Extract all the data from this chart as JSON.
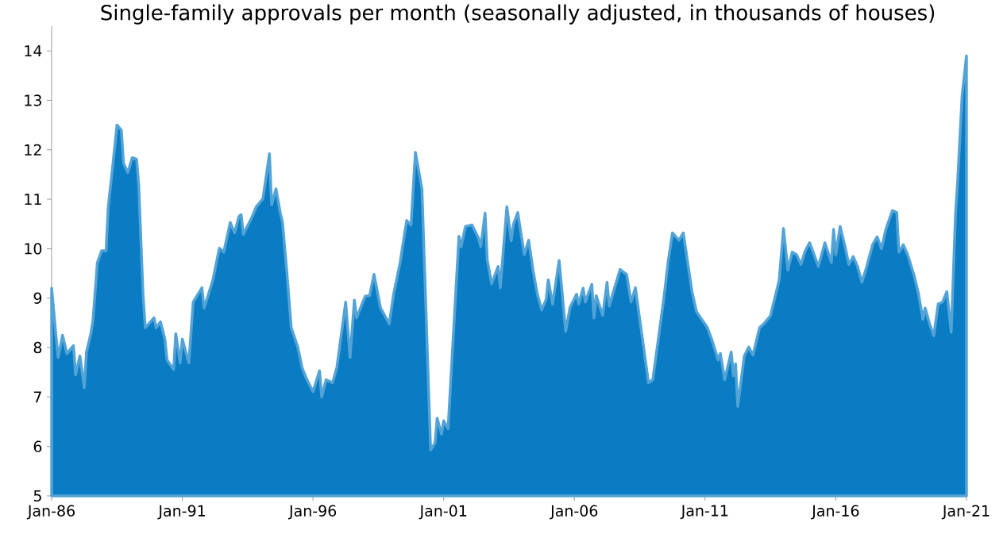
{
  "chart_data": {
    "type": "area",
    "title": "Single-family approvals per month (seasonally adjusted, in thousands of houses)",
    "x": [
      "1986-01",
      "1986-03",
      "1986-04",
      "1986-06",
      "1986-08",
      "1986-11",
      "1986-12",
      "1987-02",
      "1987-04",
      "1987-05",
      "1987-07",
      "1987-08",
      "1987-10",
      "1987-12",
      "1988-02",
      "1988-03",
      "1988-05",
      "1988-07",
      "1988-09",
      "1988-10",
      "1988-12",
      "1989-02",
      "1989-04",
      "1989-05",
      "1989-07",
      "1989-08",
      "1989-12",
      "1990-01",
      "1990-03",
      "1990-05",
      "1990-06",
      "1990-09",
      "1990-10",
      "1990-12",
      "1991-01",
      "1991-04",
      "1991-06",
      "1991-10",
      "1991-11",
      "1992-03",
      "1992-06",
      "1992-08",
      "1992-11",
      "1993-01",
      "1993-03",
      "1993-04",
      "1993-05",
      "1993-09",
      "1993-11",
      "1994-02",
      "1994-05",
      "1994-06",
      "1994-08",
      "1994-10",
      "1994-11",
      "1995-01",
      "1995-03",
      "1995-06",
      "1995-08",
      "1995-10",
      "1996-01",
      "1996-04",
      "1996-05",
      "1996-07",
      "1996-10",
      "1996-12",
      "1997-04",
      "1997-06",
      "1997-08",
      "1997-09",
      "1998-01",
      "1998-03",
      "1998-05",
      "1998-08",
      "1998-12",
      "1999-02",
      "1999-05",
      "1999-08",
      "1999-10",
      "1999-12",
      "2000-03",
      "2000-04",
      "2000-07",
      "2000-09",
      "2000-10",
      "2000-12",
      "2001-01",
      "2001-03",
      "2001-08",
      "2001-09",
      "2001-11",
      "2002-02",
      "2002-05",
      "2002-06",
      "2002-08",
      "2002-09",
      "2002-11",
      "2003-02",
      "2003-03",
      "2003-06",
      "2003-08",
      "2003-09",
      "2003-11",
      "2004-02",
      "2004-04",
      "2004-06",
      "2004-08",
      "2004-10",
      "2004-12",
      "2005-01",
      "2005-03",
      "2005-06",
      "2005-09",
      "2005-11",
      "2006-02",
      "2006-03",
      "2006-05",
      "2006-06",
      "2006-09",
      "2006-10",
      "2006-11",
      "2007-02",
      "2007-04",
      "2007-05",
      "2007-08",
      "2007-10",
      "2008-01",
      "2008-03",
      "2008-05",
      "2008-11",
      "2009-01",
      "2009-06",
      "2009-08",
      "2009-10",
      "2010-01",
      "2010-03",
      "2010-07",
      "2010-09",
      "2010-11",
      "2011-02",
      "2011-04",
      "2011-07",
      "2011-08",
      "2011-10",
      "2012-01",
      "2012-02",
      "2012-03",
      "2012-04",
      "2012-07",
      "2012-09",
      "2012-11",
      "2013-02",
      "2013-04",
      "2013-07",
      "2013-11",
      "2014-01",
      "2014-03",
      "2014-05",
      "2014-07",
      "2014-09",
      "2014-11",
      "2015-01",
      "2015-05",
      "2015-08",
      "2015-11",
      "2015-12",
      "2016-01",
      "2016-03",
      "2016-05",
      "2016-07",
      "2016-09",
      "2016-11",
      "2017-01",
      "2017-03",
      "2017-06",
      "2017-08",
      "2017-10",
      "2017-12",
      "2018-03",
      "2018-05",
      "2018-06",
      "2018-08",
      "2018-10",
      "2019-01",
      "2019-03",
      "2019-05",
      "2019-06",
      "2019-08",
      "2019-10",
      "2019-12",
      "2020-02",
      "2020-04",
      "2020-06",
      "2020-08",
      "2020-09",
      "2020-11",
      "2021-01"
    ],
    "series": [
      {
        "color": "#0a7cc4",
        "values": [
          9.2,
          8.24,
          7.8,
          8.25,
          7.88,
          8.04,
          7.45,
          7.83,
          7.19,
          7.91,
          8.28,
          8.56,
          9.72,
          9.96,
          9.96,
          10.85,
          11.65,
          12.5,
          12.4,
          11.73,
          11.54,
          11.84,
          11.81,
          11.28,
          9.04,
          8.4,
          8.6,
          8.4,
          8.52,
          8.17,
          7.75,
          7.56,
          8.28,
          7.69,
          8.17,
          7.69,
          8.92,
          9.21,
          8.8,
          9.36,
          10.01,
          9.93,
          10.53,
          10.32,
          10.65,
          10.69,
          10.29,
          10.64,
          10.85,
          11.01,
          11.92,
          10.89,
          11.21,
          10.72,
          10.53,
          9.52,
          8.4,
          8.01,
          7.59,
          7.37,
          7.11,
          7.53,
          7.0,
          7.35,
          7.29,
          7.61,
          8.92,
          7.8,
          8.96,
          8.6,
          9.04,
          9.05,
          9.48,
          8.8,
          8.48,
          9.08,
          9.72,
          10.57,
          10.48,
          11.95,
          11.21,
          9.88,
          5.93,
          6.07,
          6.57,
          6.25,
          6.52,
          6.36,
          10.25,
          10.04,
          10.45,
          10.48,
          10.21,
          10.04,
          10.72,
          9.77,
          9.29,
          9.64,
          9.21,
          10.85,
          10.16,
          10.49,
          10.73,
          9.88,
          10.17,
          9.57,
          9.08,
          8.76,
          8.97,
          9.37,
          8.88,
          9.76,
          8.33,
          8.81,
          9.08,
          8.88,
          9.2,
          8.92,
          9.28,
          8.6,
          9.05,
          8.65,
          9.32,
          8.84,
          9.29,
          9.58,
          9.48,
          8.92,
          9.21,
          7.29,
          7.35,
          8.97,
          9.72,
          10.32,
          10.17,
          10.32,
          9.13,
          8.73,
          8.6,
          8.41,
          8.17,
          7.75,
          7.88,
          7.35,
          7.91,
          7.43,
          7.67,
          6.81,
          7.83,
          8.01,
          7.85,
          8.4,
          8.48,
          8.64,
          9.36,
          10.41,
          9.57,
          9.93,
          9.88,
          9.68,
          9.96,
          10.12,
          9.64,
          10.12,
          9.72,
          10.39,
          9.88,
          10.45,
          10.09,
          9.68,
          9.84,
          9.64,
          9.32,
          9.61,
          10.09,
          10.24,
          10.0,
          10.39,
          10.77,
          10.73,
          9.93,
          10.08,
          9.88,
          9.45,
          9.08,
          8.57,
          8.8,
          8.49,
          8.24,
          8.88,
          8.92,
          9.13,
          8.31,
          10.73,
          11.4,
          13.1,
          13.9
        ]
      }
    ],
    "xlim": [
      "1986-01",
      "2021-01"
    ],
    "xticks": [
      {
        "value": "1986-01",
        "label": "Jan-86"
      },
      {
        "value": "1991-01",
        "label": "Jan-91"
      },
      {
        "value": "1996-01",
        "label": "Jan-96"
      },
      {
        "value": "2001-01",
        "label": "Jan-01"
      },
      {
        "value": "2006-01",
        "label": "Jan-06"
      },
      {
        "value": "2011-01",
        "label": "Jan-11"
      },
      {
        "value": "2016-01",
        "label": "Jan-16"
      },
      {
        "value": "2021-01",
        "label": "Jan-21"
      }
    ],
    "ylim": [
      5,
      14.5
    ],
    "yticks": [
      5,
      6,
      7,
      8,
      9,
      10,
      11,
      12,
      13,
      14
    ]
  }
}
